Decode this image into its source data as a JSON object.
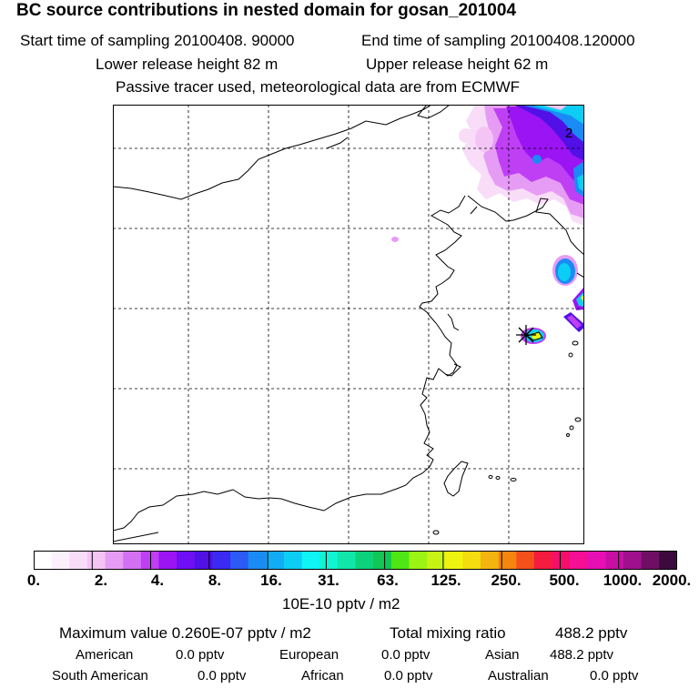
{
  "header": {
    "title": "BC  source contributions in nested domain for gosan_201004",
    "start_label": "Start time of sampling 20100408. 90000",
    "end_label": "End time of sampling 20100408.120000",
    "lower_label": "Lower release height   82 m",
    "upper_label": "Upper release height   62 m",
    "info_label": "Passive tracer used, meteorological data are from ECMWF"
  },
  "map": {
    "contour_label": "2",
    "receptor": "gosan"
  },
  "colorbar": {
    "colors": [
      "#ffffff",
      "#fdf0fd",
      "#f8dcf8",
      "#f4c4f4",
      "#e69cf4",
      "#d470f4",
      "#bf3ff4",
      "#9b14f4",
      "#6e0ff4",
      "#5010e6",
      "#3a2af4",
      "#2b5af4",
      "#1a8bf4",
      "#12acf4",
      "#0ccef4",
      "#0ff4f4",
      "#10f4d4",
      "#10e6aa",
      "#0cd27c",
      "#10c654",
      "#4ee614",
      "#9bf414",
      "#c8f414",
      "#eef40f",
      "#f4dc0f",
      "#f4b40f",
      "#f4860f",
      "#f4501c",
      "#f41c3c",
      "#f40f6a",
      "#f40f94",
      "#e60fb4",
      "#c80fa4",
      "#a00f8c",
      "#6e0f64",
      "#3c0a3c"
    ],
    "ticks": [
      "0.",
      "2.",
      "4.",
      "8.",
      "16.",
      "31.",
      "63.",
      "125.",
      "250.",
      "500.",
      "1000.",
      "2000."
    ],
    "units": "10E-10 pptv / m2"
  },
  "footer": {
    "max_label": "Maximum value  0.260E-07 pptv / m2",
    "total_label": "Total mixing ratio",
    "total_value": "488.2 pptv",
    "regions": [
      {
        "name": "American",
        "value": "0.0 pptv"
      },
      {
        "name": "European",
        "value": "0.0 pptv"
      },
      {
        "name": "Asian",
        "value": "488.2 pptv"
      },
      {
        "name": "South American",
        "value": "0.0 pptv"
      },
      {
        "name": "African",
        "value": "0.0 pptv"
      },
      {
        "name": "Australian",
        "value": "0.0 pptv"
      }
    ]
  }
}
